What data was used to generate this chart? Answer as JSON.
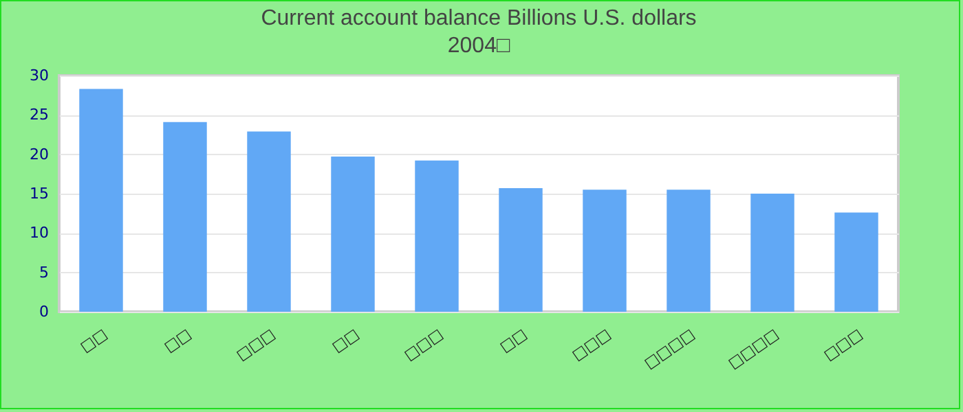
{
  "chart_data": {
    "type": "bar",
    "title": "Current account balance Billions U.S. dollars",
    "subtitle": "2004□",
    "categories": [
      "□□",
      "□□",
      "□□□",
      "□□",
      "□□□",
      "□□",
      "□□□",
      "□□□□",
      "□□□□",
      "□□□"
    ],
    "values": [
      28.3,
      24.1,
      22.9,
      19.7,
      19.2,
      15.7,
      15.5,
      15.5,
      15.0,
      12.6
    ],
    "color": "#61a8f5",
    "ylim": [
      0,
      30
    ],
    "yticks": [
      0,
      5,
      10,
      15,
      20,
      25,
      30
    ],
    "grid": "y"
  }
}
